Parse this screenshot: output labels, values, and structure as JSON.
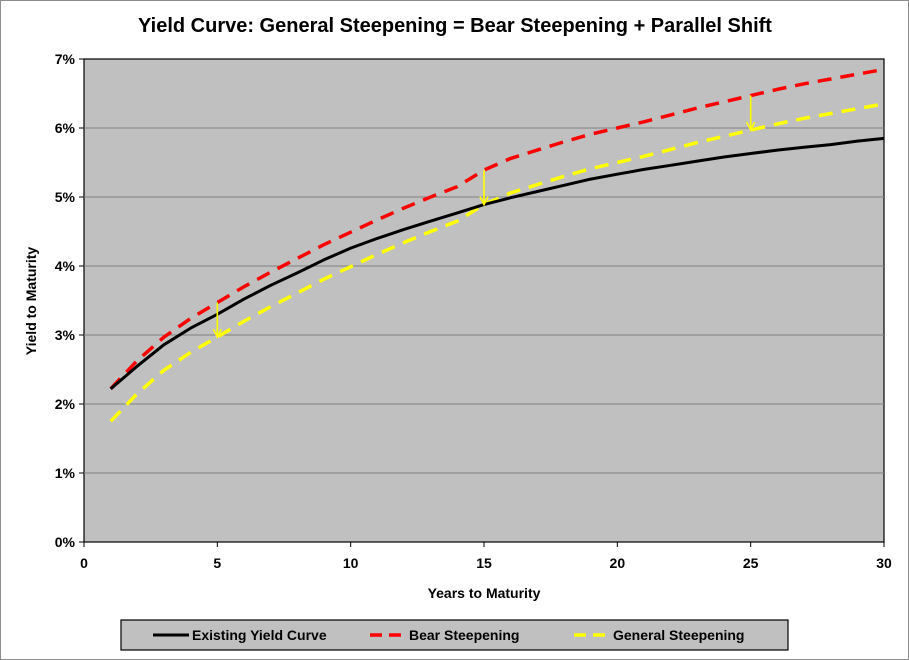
{
  "chart_data": {
    "type": "line",
    "title": "Yield Curve: General Steepening = Bear Steepening + Parallel Shift",
    "xlabel": "Years to Maturity",
    "ylabel": "Yield to Maturity",
    "xlim": [
      0,
      30
    ],
    "ylim": [
      0,
      7
    ],
    "x_ticks": [
      "0",
      "5",
      "10",
      "15",
      "20",
      "25",
      "30"
    ],
    "y_ticks": [
      "0%",
      "1%",
      "2%",
      "3%",
      "4%",
      "5%",
      "6%",
      "7%"
    ],
    "grid": "horizontal",
    "legend_position": "bottom",
    "plot_background": "#c0c0c0",
    "series": [
      {
        "name": "Existing Yield Curve",
        "color": "#000000",
        "style": "solid",
        "x": [
          1,
          2,
          3,
          4,
          5,
          6,
          7,
          8,
          9,
          10,
          11,
          12,
          13,
          14,
          15,
          16,
          17,
          18,
          19,
          20,
          21,
          22,
          23,
          24,
          25,
          26,
          27,
          28,
          29,
          30
        ],
        "y": [
          2.22,
          2.55,
          2.86,
          3.1,
          3.3,
          3.52,
          3.72,
          3.9,
          4.09,
          4.26,
          4.4,
          4.53,
          4.65,
          4.77,
          4.89,
          4.99,
          5.08,
          5.17,
          5.26,
          5.33,
          5.4,
          5.46,
          5.52,
          5.58,
          5.63,
          5.68,
          5.72,
          5.76,
          5.81,
          5.85
        ]
      },
      {
        "name": "Bear Steepening",
        "color": "#ff0000",
        "style": "dashed",
        "x": [
          1,
          2,
          3,
          4,
          5,
          6,
          7,
          8,
          9,
          10,
          11,
          12,
          13,
          14,
          15,
          16,
          17,
          18,
          19,
          20,
          21,
          22,
          23,
          24,
          25,
          26,
          27,
          28,
          29,
          30
        ],
        "y": [
          2.22,
          2.63,
          2.97,
          3.24,
          3.47,
          3.7,
          3.91,
          4.11,
          4.31,
          4.49,
          4.67,
          4.84,
          5.0,
          5.15,
          5.39,
          5.56,
          5.68,
          5.8,
          5.91,
          6.0,
          6.09,
          6.19,
          6.29,
          6.38,
          6.47,
          6.56,
          6.64,
          6.71,
          6.78,
          6.85
        ]
      },
      {
        "name": "General Steepening",
        "color": "#ffff00",
        "style": "dashed",
        "x": [
          1,
          2,
          3,
          4,
          5,
          6,
          7,
          8,
          9,
          10,
          11,
          12,
          13,
          14,
          15,
          16,
          17,
          18,
          19,
          20,
          21,
          22,
          23,
          24,
          25,
          26,
          27,
          28,
          29,
          30
        ],
        "y": [
          1.75,
          2.15,
          2.49,
          2.75,
          2.97,
          3.2,
          3.41,
          3.61,
          3.81,
          3.99,
          4.17,
          4.34,
          4.5,
          4.65,
          4.89,
          5.06,
          5.18,
          5.3,
          5.41,
          5.5,
          5.59,
          5.69,
          5.79,
          5.88,
          5.97,
          6.06,
          6.14,
          6.21,
          6.28,
          6.35
        ]
      }
    ],
    "annotations": [
      {
        "type": "arrow",
        "color": "#ffff00",
        "x": 5,
        "y_from": 3.47,
        "y_to": 2.97
      },
      {
        "type": "arrow",
        "color": "#ffff00",
        "x": 15,
        "y_from": 5.39,
        "y_to": 4.89
      },
      {
        "type": "arrow",
        "color": "#ffff00",
        "x": 25,
        "y_from": 6.47,
        "y_to": 5.97
      }
    ]
  }
}
